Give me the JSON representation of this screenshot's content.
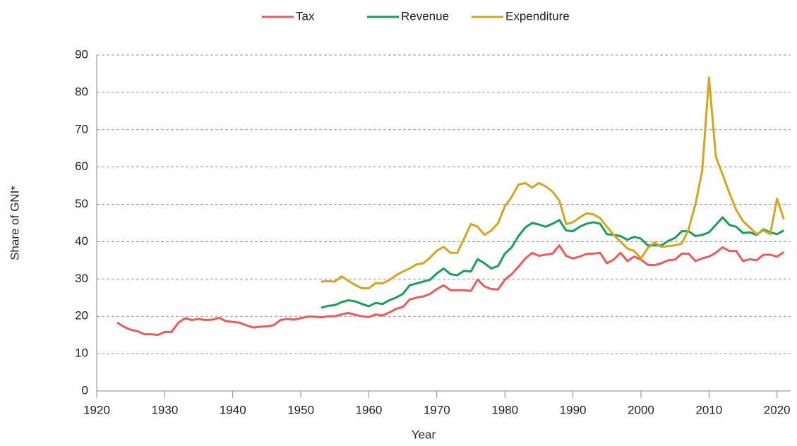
{
  "chart_data": {
    "type": "line",
    "xlabel": "Year",
    "ylabel": "Share of GNI*",
    "x": [
      1923,
      1924,
      1925,
      1926,
      1927,
      1928,
      1929,
      1930,
      1931,
      1932,
      1933,
      1934,
      1935,
      1936,
      1937,
      1938,
      1939,
      1940,
      1941,
      1942,
      1943,
      1944,
      1945,
      1946,
      1947,
      1948,
      1949,
      1950,
      1951,
      1952,
      1953,
      1954,
      1955,
      1956,
      1957,
      1958,
      1959,
      1960,
      1961,
      1962,
      1963,
      1964,
      1965,
      1966,
      1967,
      1968,
      1969,
      1970,
      1971,
      1972,
      1973,
      1974,
      1975,
      1976,
      1977,
      1978,
      1979,
      1980,
      1981,
      1982,
      1983,
      1984,
      1985,
      1986,
      1987,
      1988,
      1989,
      1990,
      1991,
      1992,
      1993,
      1994,
      1995,
      1996,
      1997,
      1998,
      1999,
      2000,
      2001,
      2002,
      2003,
      2004,
      2005,
      2006,
      2007,
      2008,
      2009,
      2010,
      2011,
      2012,
      2013,
      2014,
      2015,
      2016,
      2017,
      2018,
      2019,
      2020,
      2021
    ],
    "series": [
      {
        "name": "Tax",
        "color": "#e85c5c",
        "values": [
          18.3,
          17.2,
          16.4,
          16.0,
          15.2,
          15.2,
          15.0,
          15.8,
          15.8,
          18.3,
          19.5,
          19.0,
          19.3,
          19.0,
          19.1,
          19.6,
          18.7,
          18.5,
          18.3,
          17.6,
          17.0,
          17.2,
          17.3,
          17.6,
          19.0,
          19.3,
          19.1,
          19.5,
          19.9,
          19.9,
          19.7,
          20.0,
          20.0,
          20.5,
          20.9,
          20.4,
          20.0,
          19.8,
          20.5,
          20.2,
          21.0,
          22.0,
          22.5,
          24.5,
          25.0,
          25.3,
          26.0,
          27.3,
          28.3,
          27.0,
          27.0,
          27.0,
          26.8,
          29.8,
          28.0,
          27.3,
          27.2,
          29.8,
          31.3,
          33.3,
          35.5,
          37.0,
          36.2,
          36.5,
          36.8,
          39.0,
          36.2,
          35.5,
          36.0,
          36.7,
          36.8,
          37.0,
          34.2,
          35.2,
          37.0,
          34.8,
          36.0,
          35.2,
          33.8,
          33.7,
          34.2,
          35.0,
          35.2,
          36.8,
          36.8,
          34.8,
          35.5,
          36.0,
          37.0,
          38.5,
          37.5,
          37.5,
          34.8,
          35.3,
          35.0,
          36.5,
          36.5,
          36.0,
          37.2
        ]
      },
      {
        "name": "Revenue",
        "color": "#1a9e5a",
        "values": [
          null,
          null,
          null,
          null,
          null,
          null,
          null,
          null,
          null,
          null,
          null,
          null,
          null,
          null,
          null,
          null,
          null,
          null,
          null,
          null,
          null,
          null,
          null,
          null,
          null,
          null,
          null,
          null,
          null,
          null,
          22.3,
          22.8,
          23.0,
          23.8,
          24.3,
          24.0,
          23.3,
          22.7,
          23.6,
          23.3,
          24.3,
          25.0,
          26.0,
          28.3,
          28.8,
          29.3,
          29.8,
          31.5,
          32.8,
          31.3,
          31.0,
          32.2,
          32.0,
          35.3,
          34.2,
          32.8,
          33.5,
          36.8,
          38.5,
          41.5,
          43.8,
          45.0,
          44.6,
          44.0,
          44.8,
          45.8,
          43.0,
          42.8,
          44.0,
          44.8,
          45.2,
          44.8,
          42.0,
          41.8,
          41.5,
          40.5,
          41.3,
          40.8,
          39.0,
          39.0,
          39.0,
          40.2,
          41.0,
          42.8,
          42.8,
          41.5,
          41.8,
          42.5,
          44.5,
          46.5,
          44.5,
          44.0,
          42.3,
          42.5,
          41.8,
          43.3,
          42.5,
          42.0,
          43.0
        ]
      },
      {
        "name": "Expenditure",
        "color": "#d4a520",
        "values": [
          null,
          null,
          null,
          null,
          null,
          null,
          null,
          null,
          null,
          null,
          null,
          null,
          null,
          null,
          null,
          null,
          null,
          null,
          null,
          null,
          null,
          null,
          null,
          null,
          null,
          null,
          null,
          null,
          null,
          null,
          29.3,
          29.4,
          29.3,
          30.7,
          29.5,
          28.4,
          27.5,
          27.5,
          28.9,
          28.8,
          29.7,
          31.0,
          32.0,
          32.8,
          33.9,
          34.2,
          35.7,
          37.6,
          38.6,
          37.0,
          37.0,
          40.8,
          44.7,
          44.0,
          41.8,
          43.0,
          45.0,
          49.5,
          52.0,
          55.3,
          55.7,
          54.5,
          55.7,
          54.8,
          53.4,
          51.0,
          44.7,
          45.2,
          46.5,
          47.6,
          47.3,
          46.3,
          44.0,
          41.8,
          40.0,
          38.2,
          37.5,
          35.5,
          38.3,
          39.8,
          38.6,
          38.8,
          39.0,
          39.5,
          43.3,
          50.0,
          59.0,
          84.0,
          62.8,
          58.0,
          53.0,
          48.5,
          45.5,
          43.8,
          42.0,
          43.0,
          42.0,
          51.5,
          46.0
        ]
      }
    ],
    "xlim": [
      1920,
      2022
    ],
    "xticks": [
      1920,
      1930,
      1940,
      1950,
      1960,
      1970,
      1980,
      1990,
      2000,
      2010,
      2020
    ],
    "ylim": [
      0,
      90
    ],
    "yticks": [
      0,
      10,
      20,
      30,
      40,
      50,
      60,
      70,
      80,
      90
    ],
    "grid": true,
    "legend": "top"
  }
}
